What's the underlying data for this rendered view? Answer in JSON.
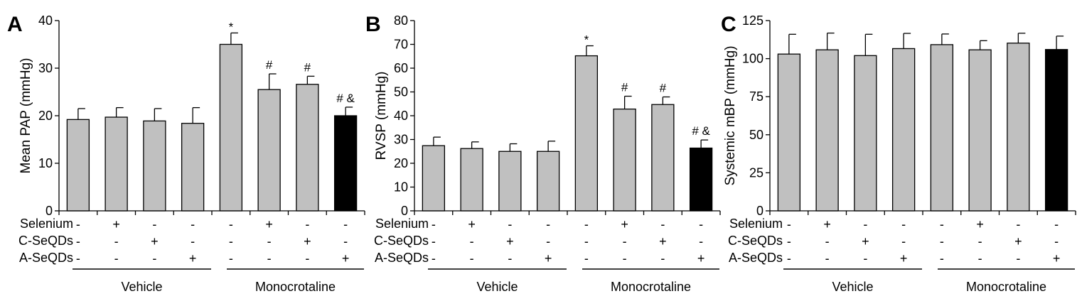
{
  "colors": {
    "gray_bar": "#c0c0c0",
    "black_bar": "#000000",
    "stroke": "#000000"
  },
  "row_labels": [
    "Selenium",
    "C-SeQDs",
    "A-SeQDs"
  ],
  "treatment_signs": [
    [
      "-",
      "+",
      "-",
      "-",
      "-",
      "+",
      "-",
      "-"
    ],
    [
      "-",
      "-",
      "+",
      "-",
      "-",
      "-",
      "+",
      "-"
    ],
    [
      "-",
      "-",
      "-",
      "+",
      "-",
      "-",
      "-",
      "+"
    ]
  ],
  "groups": [
    "Vehicle",
    "Monocrotaline"
  ],
  "chart_data": [
    {
      "type": "bar",
      "panel_label": "A",
      "ylabel": "Mean PAP (mmHg)",
      "ylim": [
        0,
        40
      ],
      "yticks": [
        0,
        10,
        20,
        30,
        40
      ],
      "values": [
        19.2,
        19.7,
        18.9,
        18.4,
        35.0,
        25.5,
        26.6,
        20.0
      ],
      "errors": [
        2.3,
        2.0,
        2.6,
        3.3,
        2.4,
        3.3,
        1.7,
        1.8
      ],
      "annotations": [
        "",
        "",
        "",
        "",
        "*",
        "#",
        "#",
        "# &"
      ],
      "bar_colors": [
        "gray",
        "gray",
        "gray",
        "gray",
        "gray",
        "gray",
        "gray",
        "black"
      ]
    },
    {
      "type": "bar",
      "panel_label": "B",
      "ylabel": "RVSP (mmHg)",
      "ylim": [
        0,
        80
      ],
      "yticks": [
        0,
        10,
        20,
        30,
        40,
        50,
        60,
        70,
        80
      ],
      "values": [
        27.4,
        26.2,
        25.0,
        25.0,
        65.2,
        42.8,
        44.7,
        26.4
      ],
      "errors": [
        3.6,
        2.8,
        3.2,
        4.3,
        4.2,
        5.4,
        3.2,
        3.4
      ],
      "annotations": [
        "",
        "",
        "",
        "",
        "*",
        "#",
        "#",
        "# &"
      ],
      "bar_colors": [
        "gray",
        "gray",
        "gray",
        "gray",
        "gray",
        "gray",
        "gray",
        "black"
      ]
    },
    {
      "type": "bar",
      "panel_label": "C",
      "ylabel": "Systemic mBP (mmHg)",
      "ylim": [
        0,
        125
      ],
      "yticks": [
        0,
        25,
        50,
        75,
        100,
        125
      ],
      "values": [
        103.0,
        105.8,
        102.0,
        106.6,
        109.2,
        105.8,
        110.2,
        106.0
      ],
      "errors": [
        13.0,
        11.0,
        14.0,
        10.0,
        7.0,
        6.0,
        6.5,
        8.8
      ],
      "annotations": [
        "",
        "",
        "",
        "",
        "",
        "",
        "",
        ""
      ],
      "bar_colors": [
        "gray",
        "gray",
        "gray",
        "gray",
        "gray",
        "gray",
        "gray",
        "black"
      ]
    }
  ]
}
